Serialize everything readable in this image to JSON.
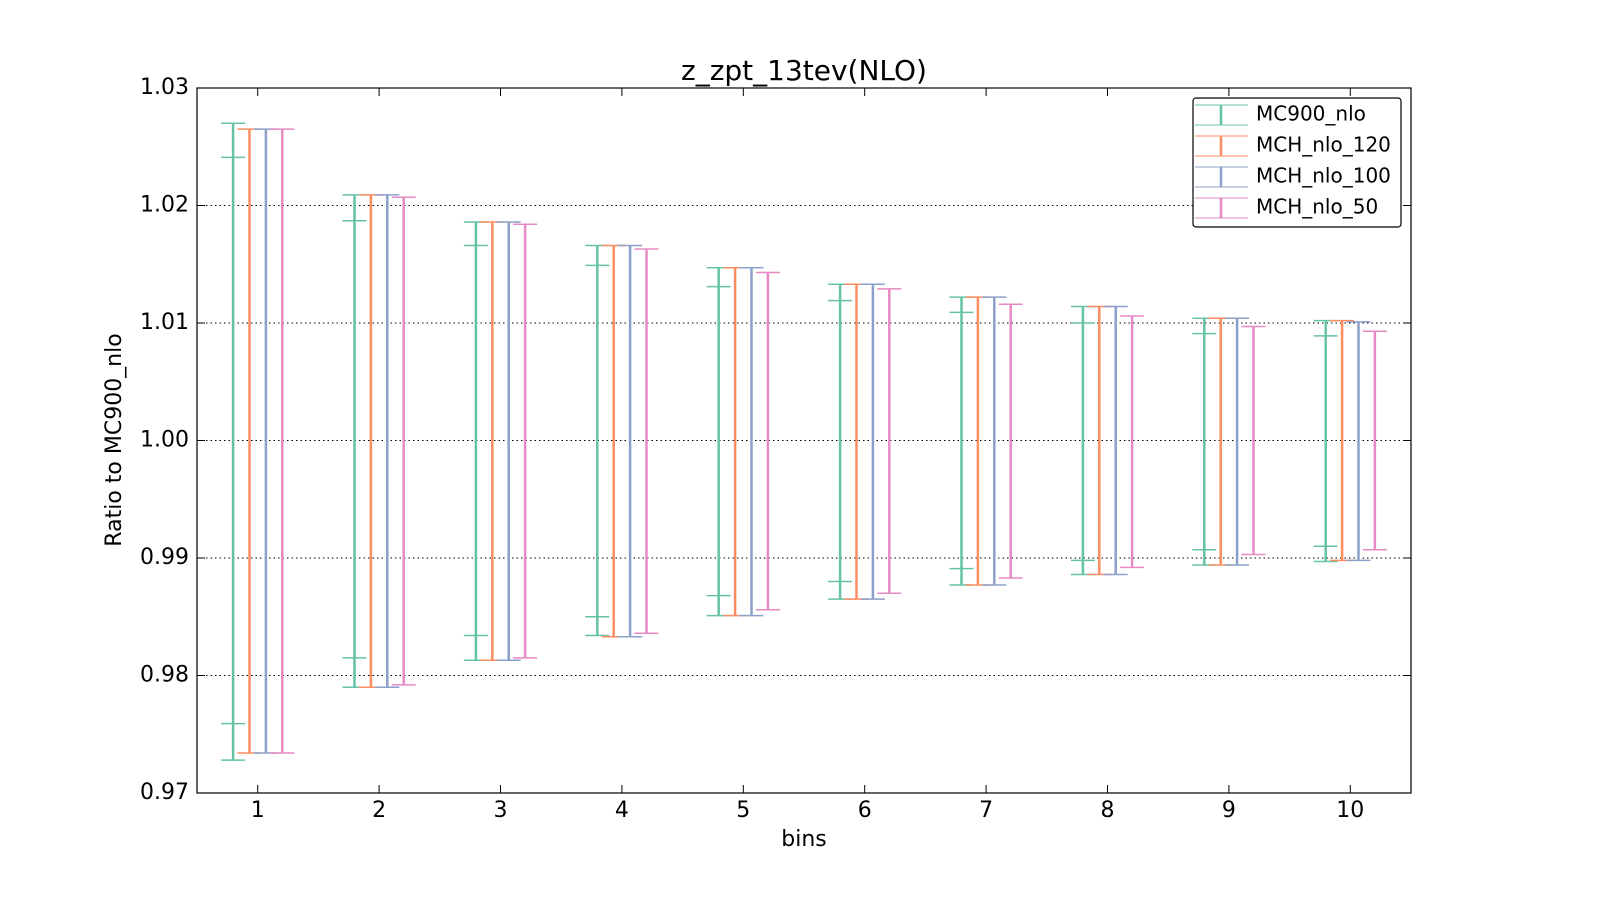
{
  "chart_data": {
    "type": "errorbar",
    "title": "z_zpt_13tev(NLO)",
    "xlabel": "bins",
    "ylabel": "Ratio to MC900_nlo",
    "x": [
      1,
      2,
      3,
      4,
      5,
      6,
      7,
      8,
      9,
      10
    ],
    "xlim": [
      0.5,
      10.5
    ],
    "xticks": [
      1,
      2,
      3,
      4,
      5,
      6,
      7,
      8,
      9,
      10
    ],
    "ylim": [
      0.97,
      1.03
    ],
    "yticks": [
      0.97,
      0.98,
      0.99,
      {
        "value": 1.0,
        "label": "1.00"
      },
      1.01,
      1.02,
      1.03
    ],
    "grid": true,
    "legend": "upper right",
    "series": [
      {
        "name": "MC900_nlo",
        "color": "#66c2a5",
        "high": [
          1.027,
          1.0209,
          1.0186,
          1.0166,
          1.0147,
          1.0133,
          1.0122,
          1.0114,
          1.0104,
          1.0102
        ],
        "low": [
          0.9728,
          0.979,
          0.9813,
          0.9834,
          0.9851,
          0.9865,
          0.9877,
          0.9886,
          0.9894,
          0.9897
        ],
        "inner_high": [
          1.0241,
          1.0187,
          1.0166,
          1.0149,
          1.0131,
          1.0119,
          1.0109,
          1.01,
          1.0091,
          1.0089
        ],
        "inner_low": [
          0.9759,
          0.9815,
          0.9834,
          0.985,
          0.9868,
          0.988,
          0.9891,
          0.9898,
          0.9907,
          0.991
        ]
      },
      {
        "name": "MCH_nlo_120",
        "color": "#fc8d62",
        "high": [
          1.0265,
          1.0209,
          1.0186,
          1.0166,
          1.0147,
          1.0133,
          1.0122,
          1.0114,
          1.0104,
          1.0102
        ],
        "low": [
          0.9734,
          0.979,
          0.9813,
          0.9833,
          0.9851,
          0.9865,
          0.9877,
          0.9886,
          0.9894,
          0.9898
        ]
      },
      {
        "name": "MCH_nlo_100",
        "color": "#8da0cb",
        "high": [
          1.0265,
          1.0209,
          1.0186,
          1.0166,
          1.0147,
          1.0133,
          1.0122,
          1.0114,
          1.0104,
          1.0101
        ],
        "low": [
          0.9734,
          0.979,
          0.9813,
          0.9833,
          0.9851,
          0.9865,
          0.9877,
          0.9886,
          0.9894,
          0.9898
        ]
      },
      {
        "name": "MCH_nlo_50",
        "color": "#e78ac3",
        "high": [
          1.0265,
          1.0207,
          1.0184,
          1.0163,
          1.0143,
          1.0129,
          1.0116,
          1.0106,
          1.0097,
          1.0093
        ],
        "low": [
          0.9734,
          0.9792,
          0.9815,
          0.9836,
          0.9856,
          0.987,
          0.9883,
          0.9892,
          0.9903,
          0.9907
        ]
      }
    ]
  }
}
